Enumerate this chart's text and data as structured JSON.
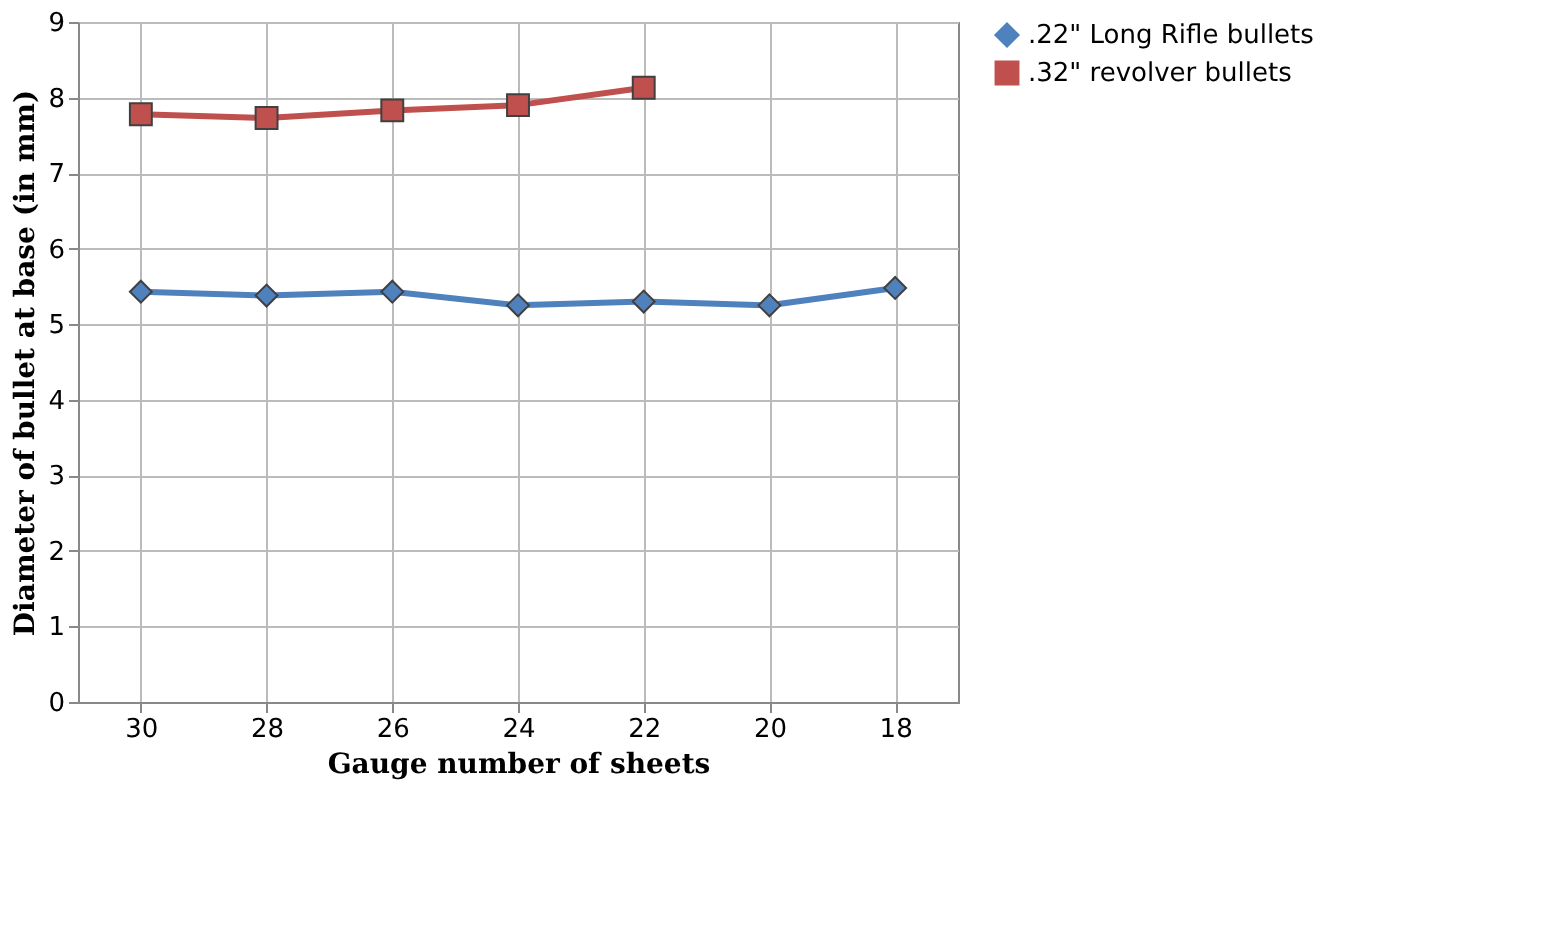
{
  "chart_data": {
    "type": "line",
    "xlabel": "Gauge number of sheets",
    "ylabel": "Diameter of bullet  at base (in mm)",
    "categories": [
      "30",
      "28",
      "26",
      "24",
      "22",
      "20",
      "18"
    ],
    "series": [
      {
        "name": ".22\" Long Rifle bullets",
        "color": "#4f81bd",
        "marker": "diamond",
        "values": [
          5.43,
          5.38,
          5.43,
          5.25,
          5.3,
          5.25,
          5.48
        ]
      },
      {
        "name": ".32\" revolver bullets",
        "color": "#c0504d",
        "marker": "square",
        "values": [
          7.78,
          7.73,
          7.83,
          7.9,
          8.13,
          null,
          null
        ]
      }
    ],
    "ylim": [
      0,
      9
    ],
    "yticks": [
      0,
      1,
      2,
      3,
      4,
      5,
      6,
      7,
      8,
      9
    ],
    "grid": true,
    "legend": "right",
    "line_style": "solid"
  }
}
